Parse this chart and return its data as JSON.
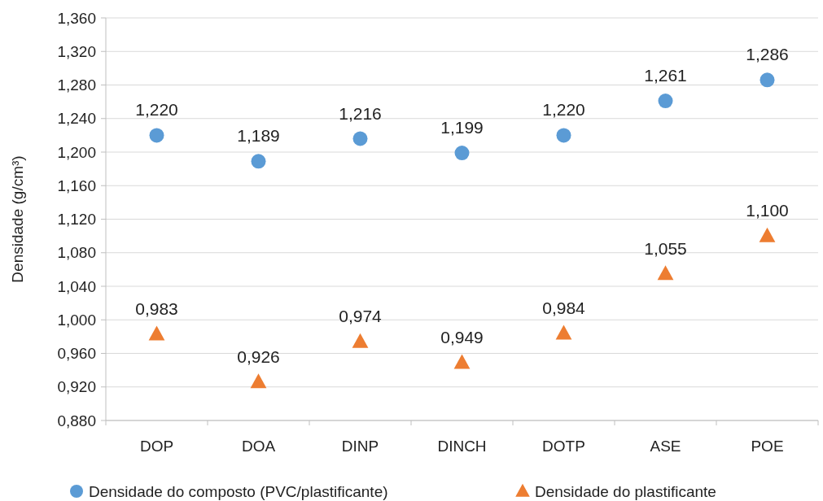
{
  "chart_data": {
    "type": "scatter",
    "ylabel": "Densidade  (g/cm³)",
    "categories": [
      "DOP",
      "DOA",
      "DINP",
      "DINCH",
      "DOTP",
      "ASE",
      "POE"
    ],
    "series": [
      {
        "name": "Densidade do composto (PVC/plastificante)",
        "color": "#5b9bd5",
        "marker": "circle",
        "values": [
          1.22,
          1.189,
          1.216,
          1.199,
          1.22,
          1.261,
          1.286
        ],
        "value_labels": [
          "1,220",
          "1,189",
          "1,216",
          "1,199",
          "1,220",
          "1,261",
          "1,286"
        ]
      },
      {
        "name": "Densidade do plastificante",
        "color": "#ed7d31",
        "marker": "triangle",
        "values": [
          0.983,
          0.926,
          0.974,
          0.949,
          0.984,
          1.055,
          1.1
        ],
        "value_labels": [
          "0,983",
          "0,926",
          "0,974",
          "0,949",
          "0,984",
          "1,055",
          "1,100"
        ]
      }
    ],
    "ylim": [
      0.88,
      1.36
    ],
    "yticks": [
      {
        "value": 0.88,
        "label": "0,880"
      },
      {
        "value": 0.92,
        "label": "0,920"
      },
      {
        "value": 0.96,
        "label": "0,960"
      },
      {
        "value": 1.0,
        "label": "1,000"
      },
      {
        "value": 1.04,
        "label": "1,040"
      },
      {
        "value": 1.08,
        "label": "1,080"
      },
      {
        "value": 1.12,
        "label": "1,120"
      },
      {
        "value": 1.16,
        "label": "1,160"
      },
      {
        "value": 1.2,
        "label": "1,200"
      },
      {
        "value": 1.24,
        "label": "1,240"
      },
      {
        "value": 1.28,
        "label": "1,280"
      },
      {
        "value": 1.32,
        "label": "1,320"
      },
      {
        "value": 1.36,
        "label": "1,360"
      }
    ],
    "grid": "y",
    "legend": "bottom"
  }
}
